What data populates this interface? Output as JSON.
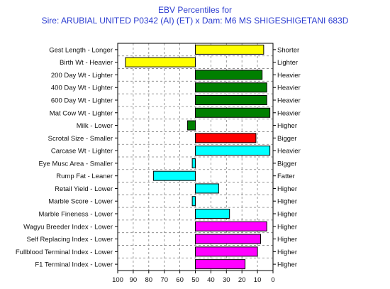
{
  "chart_data": {
    "type": "bar",
    "orientation": "horizontal",
    "title": "EBV Percentiles for",
    "subtitle": "Sire: ARUBIAL UNITED P0342 (AI) (ET) x Dam: M6 MS SHIGESHIGETANI 683D",
    "xlim": [
      100,
      0
    ],
    "baseline": 50,
    "x_ticks": [
      "100",
      "90",
      "80",
      "70",
      "60",
      "50",
      "40",
      "30",
      "20",
      "10",
      "0"
    ],
    "grid": true,
    "traits": [
      {
        "left_label": "Gest Length - Longer",
        "right_label": "Shorter",
        "value": 6,
        "color": "#ffff00"
      },
      {
        "left_label": "Birth Wt - Heavier",
        "right_label": "Lighter",
        "value": 95,
        "color": "#ffff00"
      },
      {
        "left_label": "200 Day Wt - Lighter",
        "right_label": "Heavier",
        "value": 7,
        "color": "#007f00"
      },
      {
        "left_label": "400 Day Wt - Lighter",
        "right_label": "Heavier",
        "value": 4,
        "color": "#007f00"
      },
      {
        "left_label": "600 Day Wt - Lighter",
        "right_label": "Heavier",
        "value": 4,
        "color": "#007f00"
      },
      {
        "left_label": "Mat Cow Wt - Lighter",
        "right_label": "Heavier",
        "value": 2,
        "color": "#007f00"
      },
      {
        "left_label": "Milk - Lower",
        "right_label": "Higher",
        "value": 55,
        "color": "#007f00"
      },
      {
        "left_label": "Scrotal Size - Smaller",
        "right_label": "Bigger",
        "value": 11,
        "color": "#ff0000"
      },
      {
        "left_label": "Carcase Wt - Lighter",
        "right_label": "Heavier",
        "value": 2,
        "color": "#00ffff"
      },
      {
        "left_label": "Eye Musc Area - Smaller",
        "right_label": "Bigger",
        "value": 52,
        "color": "#00ffff"
      },
      {
        "left_label": "Rump Fat - Leaner",
        "right_label": "Fatter",
        "value": 77,
        "color": "#00ffff"
      },
      {
        "left_label": "Retail Yield - Lower",
        "right_label": "Higher",
        "value": 35,
        "color": "#00ffff"
      },
      {
        "left_label": "Marble Score - Lower",
        "right_label": "Higher",
        "value": 52,
        "color": "#00ffff"
      },
      {
        "left_label": "Marble Fineness - Lower",
        "right_label": "Higher",
        "value": 28,
        "color": "#00ffff"
      },
      {
        "left_label": "Wagyu Breeder Index - Lower",
        "right_label": "Higher",
        "value": 4,
        "color": "#ff00ff"
      },
      {
        "left_label": "Self Replacing Index - Lower",
        "right_label": "Higher",
        "value": 8,
        "color": "#ff00ff"
      },
      {
        "left_label": "Fullblood Terminal Index - Lower",
        "right_label": "Higher",
        "value": 10,
        "color": "#ff00ff"
      },
      {
        "left_label": "F1 Terminal Index - Lower",
        "right_label": "Higher",
        "value": 18,
        "color": "#ff00ff"
      }
    ]
  }
}
